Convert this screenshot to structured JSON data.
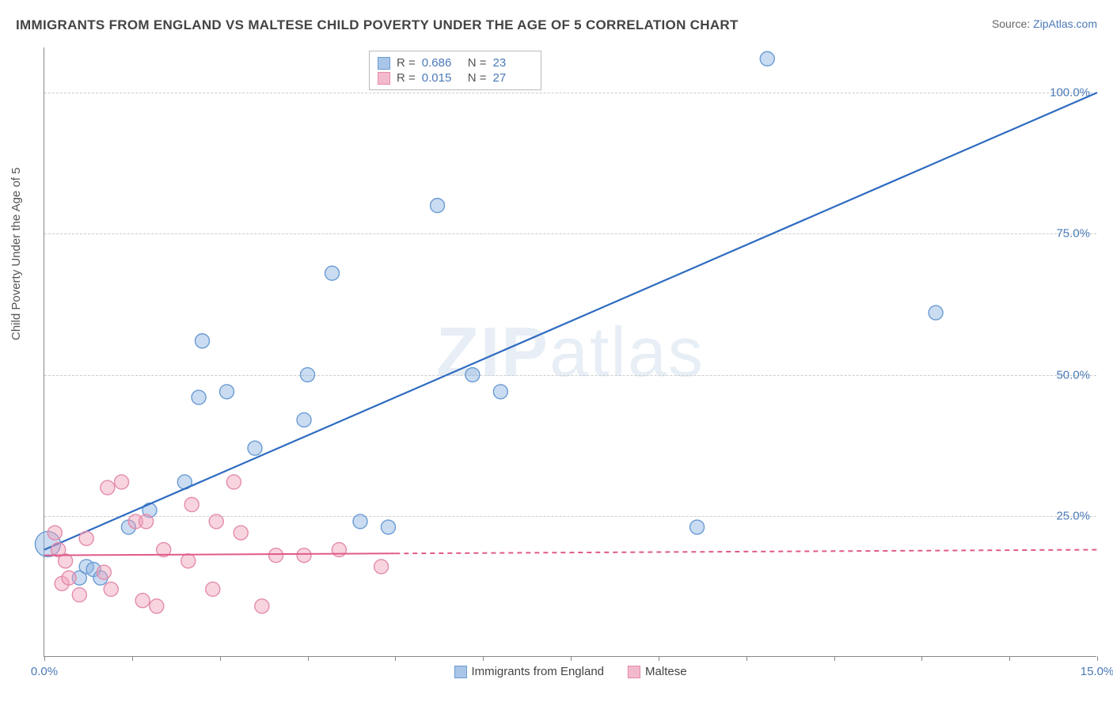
{
  "header": {
    "title": "IMMIGRANTS FROM ENGLAND VS MALTESE CHILD POVERTY UNDER THE AGE OF 5 CORRELATION CHART",
    "source_prefix": "Source: ",
    "source_link": "ZipAtlas.com"
  },
  "chart": {
    "type": "scatter",
    "ylabel": "Child Poverty Under the Age of 5",
    "watermark": {
      "part1": "ZIP",
      "part2": "atlas"
    },
    "xlim": [
      0,
      15
    ],
    "ylim": [
      0,
      108
    ],
    "x_ticks": [
      0,
      1.25,
      2.5,
      3.75,
      5,
      6.25,
      7.5,
      8.75,
      10,
      11.25,
      12.5,
      13.75,
      15
    ],
    "x_tick_labels": {
      "0": "0.0%",
      "15": "15.0%"
    },
    "y_gridlines": [
      25,
      50,
      75,
      100
    ],
    "y_tick_labels": {
      "25": "25.0%",
      "50": "50.0%",
      "75": "75.0%",
      "100": "100.0%"
    },
    "background_color": "#ffffff",
    "grid_color": "#cccccc",
    "axis_label_color": "#4a7ab8",
    "series": [
      {
        "name": "Immigrants from England",
        "color_fill": "rgba(137, 178, 224, 0.45)",
        "color_stroke": "#6a9bd4",
        "swatch_fill": "#a9c6e8",
        "swatch_border": "#6a9bd4",
        "marker_radius": 9,
        "R": "0.686",
        "N": "23",
        "trend": {
          "x1": 0,
          "y1": 19,
          "x2": 15,
          "y2": 100,
          "color": "#2e6bc0",
          "width": 2.2,
          "dash_after_x": null
        },
        "points": [
          {
            "x": 0.05,
            "y": 20,
            "r": 16
          },
          {
            "x": 0.5,
            "y": 14
          },
          {
            "x": 0.6,
            "y": 16
          },
          {
            "x": 0.7,
            "y": 15.5
          },
          {
            "x": 0.8,
            "y": 14
          },
          {
            "x": 1.2,
            "y": 23
          },
          {
            "x": 1.5,
            "y": 26
          },
          {
            "x": 2.0,
            "y": 31
          },
          {
            "x": 2.2,
            "y": 46
          },
          {
            "x": 2.25,
            "y": 56
          },
          {
            "x": 2.6,
            "y": 47
          },
          {
            "x": 3.0,
            "y": 37
          },
          {
            "x": 3.7,
            "y": 42
          },
          {
            "x": 3.75,
            "y": 50
          },
          {
            "x": 4.1,
            "y": 68
          },
          {
            "x": 4.5,
            "y": 24
          },
          {
            "x": 4.9,
            "y": 23
          },
          {
            "x": 5.6,
            "y": 80
          },
          {
            "x": 6.1,
            "y": 50
          },
          {
            "x": 6.5,
            "y": 47
          },
          {
            "x": 9.3,
            "y": 23
          },
          {
            "x": 10.3,
            "y": 106
          },
          {
            "x": 12.7,
            "y": 61
          }
        ]
      },
      {
        "name": "Maltese",
        "color_fill": "rgba(240, 160, 185, 0.45)",
        "color_stroke": "#e48bac",
        "swatch_fill": "#f3b9cd",
        "swatch_border": "#e48bac",
        "marker_radius": 9,
        "R": "0.015",
        "N": "27",
        "trend": {
          "x1": 0,
          "y1": 18,
          "x2": 15,
          "y2": 19,
          "color": "#e05a8a",
          "width": 2,
          "dash_after_x": 5.0
        },
        "points": [
          {
            "x": 0.15,
            "y": 22
          },
          {
            "x": 0.2,
            "y": 19
          },
          {
            "x": 0.25,
            "y": 13
          },
          {
            "x": 0.3,
            "y": 17
          },
          {
            "x": 0.35,
            "y": 14
          },
          {
            "x": 0.5,
            "y": 11
          },
          {
            "x": 0.6,
            "y": 21
          },
          {
            "x": 0.85,
            "y": 15
          },
          {
            "x": 0.9,
            "y": 30
          },
          {
            "x": 0.95,
            "y": 12
          },
          {
            "x": 1.1,
            "y": 31
          },
          {
            "x": 1.3,
            "y": 24
          },
          {
            "x": 1.4,
            "y": 10
          },
          {
            "x": 1.45,
            "y": 24
          },
          {
            "x": 1.6,
            "y": 9
          },
          {
            "x": 1.7,
            "y": 19
          },
          {
            "x": 2.05,
            "y": 17
          },
          {
            "x": 2.1,
            "y": 27
          },
          {
            "x": 2.4,
            "y": 12
          },
          {
            "x": 2.45,
            "y": 24
          },
          {
            "x": 2.7,
            "y": 31
          },
          {
            "x": 2.8,
            "y": 22
          },
          {
            "x": 3.1,
            "y": 9
          },
          {
            "x": 3.3,
            "y": 18
          },
          {
            "x": 3.7,
            "y": 18
          },
          {
            "x": 4.2,
            "y": 19
          },
          {
            "x": 4.8,
            "y": 16
          }
        ]
      }
    ],
    "stats_legend": {
      "R_label": "R =",
      "N_label": "N ="
    },
    "bottom_legend": {
      "label1": "Immigrants from England",
      "label2": "Maltese"
    }
  }
}
